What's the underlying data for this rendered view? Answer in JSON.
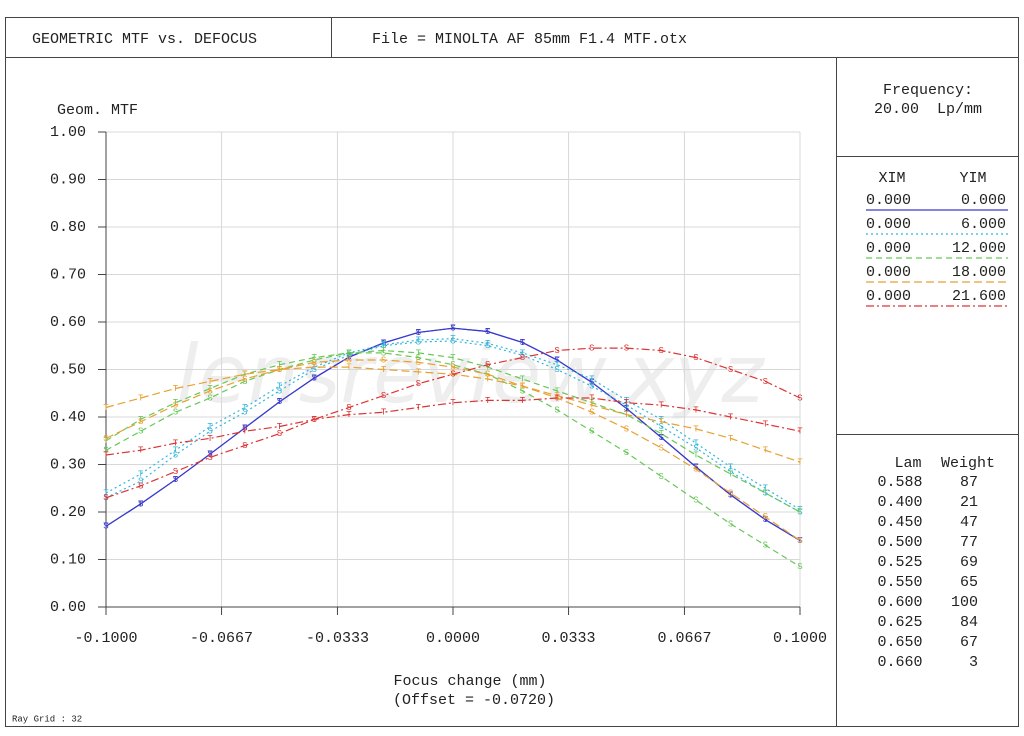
{
  "chart_data": {
    "type": "line",
    "title": "GEOMETRIC MTF vs. DEFOCUS",
    "file": "File = MINOLTA AF 85mm F1.4 MTF.otx",
    "ylabel": "Geom. MTF",
    "xlabel": "Focus change (mm)",
    "offset": "(Offset = -0.0720)",
    "frequency_title": "Frequency:",
    "frequency": "20.00  Lp/mm",
    "ray_grid": "Ray Grid : 32",
    "watermark": "lensreview.xyz",
    "legend_headers": [
      "XIM",
      "YIM"
    ],
    "marker_labels": {
      "tangential": "T",
      "sagittal": "S"
    },
    "x": [
      -0.1,
      -0.09,
      -0.08,
      -0.07,
      -0.06,
      -0.05,
      -0.04,
      -0.03,
      -0.02,
      -0.01,
      0,
      0.01,
      0.02,
      0.03,
      0.04,
      0.05,
      0.06,
      0.07,
      0.08,
      0.09,
      0.1
    ],
    "xlim": [
      -0.1,
      0.1
    ],
    "xticks": [
      {
        "value": -0.1,
        "label": "-0.1000"
      },
      {
        "value": -0.0667,
        "label": "-0.0667"
      },
      {
        "value": -0.0333,
        "label": "-0.0333"
      },
      {
        "value": 0,
        "label": "0.0000"
      },
      {
        "value": 0.0333,
        "label": "0.0333"
      },
      {
        "value": 0.0667,
        "label": "0.0667"
      },
      {
        "value": 0.1,
        "label": "0.1000"
      }
    ],
    "ylim": [
      0,
      1
    ],
    "yticks": [
      {
        "value": 0,
        "label": "0.00"
      },
      {
        "value": 0.1,
        "label": "0.10"
      },
      {
        "value": 0.2,
        "label": "0.20"
      },
      {
        "value": 0.3,
        "label": "0.30"
      },
      {
        "value": 0.4,
        "label": "0.40"
      },
      {
        "value": 0.5,
        "label": "0.50"
      },
      {
        "value": 0.6,
        "label": "0.60"
      },
      {
        "value": 0.7,
        "label": "0.70"
      },
      {
        "value": 0.8,
        "label": "0.80"
      },
      {
        "value": 0.9,
        "label": "0.90"
      },
      {
        "value": 1,
        "label": "1.00"
      }
    ],
    "grid": true,
    "series": [
      {
        "xim": "0.000",
        "yim": "0.000",
        "color": "#3a3acc",
        "dash": "none",
        "tangential": [
          0.17,
          0.217,
          0.268,
          0.322,
          0.377,
          0.432,
          0.482,
          0.526,
          0.556,
          0.578,
          0.587,
          0.58,
          0.557,
          0.52,
          0.473,
          0.418,
          0.357,
          0.295,
          0.236,
          0.184,
          0.14
        ],
        "sagittal": [
          0.17,
          0.217,
          0.268,
          0.322,
          0.377,
          0.432,
          0.482,
          0.526,
          0.556,
          0.578,
          0.587,
          0.58,
          0.557,
          0.52,
          0.473,
          0.418,
          0.357,
          0.295,
          0.236,
          0.184,
          0.14
        ]
      },
      {
        "xim": "0.000",
        "yim": "6.000",
        "color": "#33b5dd",
        "dash": "2,3",
        "tangential": [
          0.24,
          0.28,
          0.33,
          0.38,
          0.42,
          0.465,
          0.505,
          0.535,
          0.552,
          0.562,
          0.565,
          0.555,
          0.535,
          0.51,
          0.48,
          0.435,
          0.395,
          0.345,
          0.295,
          0.25,
          0.205
        ],
        "sagittal": [
          0.23,
          0.265,
          0.32,
          0.37,
          0.41,
          0.455,
          0.5,
          0.53,
          0.55,
          0.558,
          0.56,
          0.55,
          0.53,
          0.5,
          0.465,
          0.425,
          0.38,
          0.335,
          0.285,
          0.24,
          0.2
        ]
      },
      {
        "xim": "0.000",
        "yim": "12.000",
        "color": "#66c855",
        "dash": "6,4",
        "tangential": [
          0.35,
          0.395,
          0.43,
          0.46,
          0.49,
          0.51,
          0.525,
          0.535,
          0.54,
          0.535,
          0.525,
          0.505,
          0.48,
          0.455,
          0.43,
          0.405,
          0.365,
          0.32,
          0.28,
          0.24,
          0.2
        ],
        "sagittal": [
          0.33,
          0.37,
          0.41,
          0.44,
          0.475,
          0.5,
          0.52,
          0.535,
          0.535,
          0.525,
          0.51,
          0.49,
          0.455,
          0.415,
          0.37,
          0.325,
          0.275,
          0.225,
          0.175,
          0.13,
          0.085
        ]
      },
      {
        "xim": "0.000",
        "yim": "18.000",
        "color": "#e8a030",
        "dash": "8,4",
        "tangential": [
          0.42,
          0.44,
          0.46,
          0.475,
          0.49,
          0.5,
          0.505,
          0.505,
          0.5,
          0.495,
          0.49,
          0.48,
          0.465,
          0.445,
          0.425,
          0.405,
          0.39,
          0.375,
          0.355,
          0.33,
          0.305
        ],
        "sagittal": [
          0.355,
          0.39,
          0.425,
          0.455,
          0.48,
          0.5,
          0.515,
          0.52,
          0.52,
          0.515,
          0.505,
          0.49,
          0.465,
          0.44,
          0.41,
          0.375,
          0.335,
          0.29,
          0.24,
          0.19,
          0.14
        ]
      },
      {
        "xim": "0.000",
        "yim": "21.600",
        "color": "#dd3333",
        "dash": "8,3,2,3",
        "tangential": [
          0.32,
          0.33,
          0.345,
          0.355,
          0.37,
          0.38,
          0.395,
          0.405,
          0.41,
          0.42,
          0.43,
          0.435,
          0.435,
          0.44,
          0.44,
          0.43,
          0.425,
          0.415,
          0.4,
          0.385,
          0.37
        ],
        "sagittal": [
          0.23,
          0.255,
          0.285,
          0.315,
          0.34,
          0.365,
          0.395,
          0.42,
          0.445,
          0.47,
          0.49,
          0.51,
          0.525,
          0.54,
          0.545,
          0.545,
          0.54,
          0.525,
          0.5,
          0.475,
          0.44
        ]
      }
    ],
    "wavelength_headers": [
      "Lam",
      "Weight"
    ],
    "wavelengths": [
      [
        "0.588",
        "87"
      ],
      [
        "0.400",
        "21"
      ],
      [
        "0.450",
        "47"
      ],
      [
        "0.500",
        "77"
      ],
      [
        "0.525",
        "69"
      ],
      [
        "0.550",
        "65"
      ],
      [
        "0.600",
        "100"
      ],
      [
        "0.625",
        "84"
      ],
      [
        "0.650",
        "67"
      ],
      [
        "0.660",
        "3"
      ]
    ]
  }
}
